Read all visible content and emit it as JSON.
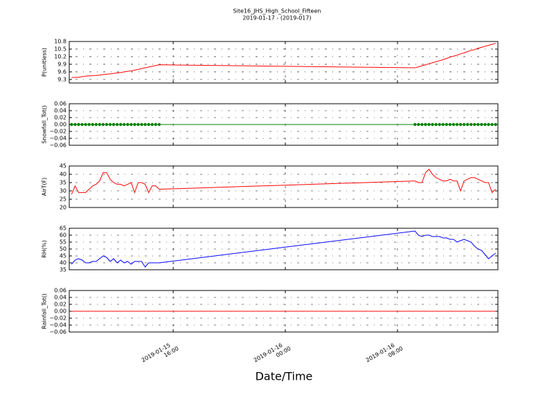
{
  "chart_data": {
    "type": "line",
    "title": "Site16_JHS_High_School_Fifteen",
    "subtitle": "2019-01-17 - (2019-017)",
    "xlabel": "Date/Time",
    "xlim": [
      "2019-01-15 08:35",
      "2019-01-16 15:10"
    ],
    "xticks": [
      "2019-01-15 16:00",
      "2019-01-16 00:00",
      "2019-01-16 08:00"
    ],
    "grid": true,
    "x": [
      "2019-01-15 08:45",
      "2019-01-15 09:00",
      "2019-01-15 09:15",
      "2019-01-15 09:30",
      "2019-01-15 09:45",
      "2019-01-15 10:00",
      "2019-01-15 10:15",
      "2019-01-15 10:30",
      "2019-01-15 10:45",
      "2019-01-15 11:00",
      "2019-01-15 11:15",
      "2019-01-15 11:30",
      "2019-01-15 11:45",
      "2019-01-15 12:00",
      "2019-01-15 12:15",
      "2019-01-15 12:30",
      "2019-01-15 12:45",
      "2019-01-15 13:00",
      "2019-01-15 13:15",
      "2019-01-15 13:30",
      "2019-01-15 13:45",
      "2019-01-15 14:00",
      "2019-01-15 14:15",
      "2019-01-15 14:30",
      "2019-01-15 14:45",
      "2019-01-15 15:00",
      "2019-01-16 09:15",
      "2019-01-16 09:30",
      "2019-01-16 09:45",
      "2019-01-16 10:00",
      "2019-01-16 10:15",
      "2019-01-16 10:30",
      "2019-01-16 10:45",
      "2019-01-16 11:00",
      "2019-01-16 11:15",
      "2019-01-16 11:30",
      "2019-01-16 11:45",
      "2019-01-16 12:00",
      "2019-01-16 12:15",
      "2019-01-16 12:30",
      "2019-01-16 12:45",
      "2019-01-16 13:00",
      "2019-01-16 13:15",
      "2019-01-16 13:30",
      "2019-01-16 13:45",
      "2019-01-16 14:00",
      "2019-01-16 14:15",
      "2019-01-16 14:30",
      "2019-01-16 14:45",
      "2019-01-16 15:00"
    ],
    "panels": [
      {
        "ylabel": "P(unitless)",
        "ylim": [
          9.16,
          10.8
        ],
        "yticks": [
          9.3,
          9.6,
          9.9,
          10.2,
          10.5,
          10.8
        ],
        "series": [
          {
            "color": "#ff0000",
            "markers": false,
            "values": [
              9.38,
              9.38,
              9.39,
              9.41,
              9.43,
              9.44,
              9.45,
              9.46,
              9.47,
              9.49,
              9.51,
              9.52,
              9.54,
              9.56,
              9.57,
              9.6,
              9.62,
              9.64,
              9.67,
              9.7,
              9.73,
              9.76,
              9.79,
              9.82,
              9.85,
              9.88,
              9.76,
              9.8,
              9.84,
              9.88,
              9.92,
              9.96,
              10.0,
              10.04,
              10.08,
              10.13,
              10.18,
              10.22,
              10.26,
              10.31,
              10.35,
              10.4,
              10.45,
              10.48,
              10.53,
              10.57,
              10.61,
              10.65,
              10.69,
              10.73
            ]
          }
        ]
      },
      {
        "ylabel": "Snowfall_Tot()",
        "ylim": [
          -0.06,
          0.06
        ],
        "yticks": [
          {
            "value": -0.06,
            "label": "−0.06"
          },
          {
            "value": -0.04,
            "label": "−0.04"
          },
          {
            "value": -0.02,
            "label": "−0.02"
          },
          {
            "value": 0,
            "label": "0.00"
          },
          0.02,
          0.04,
          0.06
        ],
        "series": [
          {
            "color": "#008000",
            "markers": true,
            "values": [
              0,
              0,
              0,
              0,
              0,
              0,
              0,
              0,
              0,
              0,
              0,
              0,
              0,
              0,
              0,
              0,
              0,
              0,
              0,
              0,
              0,
              0,
              0,
              0,
              0,
              0,
              0,
              0,
              0,
              0,
              0,
              0,
              0,
              0,
              0,
              0,
              0,
              0,
              0,
              0,
              0,
              0,
              0,
              0,
              0,
              0,
              0,
              0,
              0,
              0
            ]
          }
        ]
      },
      {
        "ylabel": "AirT(F)",
        "ylim": [
          20,
          45
        ],
        "yticks": [
          20,
          25,
          30,
          35,
          40,
          45
        ],
        "series": [
          {
            "color": "#ff0000",
            "markers": false,
            "values": [
              28,
              33,
              29,
              29,
              29,
              31,
              33,
              34,
              36,
              41,
              41,
              37,
              35,
              34,
              34,
              33,
              34,
              35,
              29,
              35,
              35,
              34,
              29,
              33,
              33,
              31,
              36,
              35,
              35,
              41,
              43,
              40,
              38,
              37,
              36,
              36,
              37,
              36,
              36,
              30,
              36,
              37,
              38,
              38,
              37,
              36,
              35,
              35,
              29,
              31
            ]
          }
        ]
      },
      {
        "ylabel": "RH(%)",
        "ylim": [
          35,
          65
        ],
        "yticks": [
          35,
          40,
          45,
          50,
          55,
          60,
          65
        ],
        "series": [
          {
            "color": "#0000ff",
            "markers": false,
            "values": [
              39,
              42,
              43,
              42,
              40,
              40,
              41,
              41,
              43,
              45,
              44,
              41,
              43,
              40,
              42,
              40,
              41,
              39,
              41,
              41,
              41,
              37,
              40,
              40,
              40,
              40,
              63,
              60,
              59,
              60,
              60,
              59,
              59,
              59,
              58,
              58,
              57,
              57,
              55,
              56,
              57,
              56,
              55,
              52,
              50,
              49,
              46,
              43,
              45,
              47
            ]
          }
        ]
      },
      {
        "ylabel": "Rainfall_Tot()",
        "ylim": [
          -0.06,
          0.06
        ],
        "yticks": [
          {
            "value": -0.06,
            "label": "−0.06"
          },
          {
            "value": -0.04,
            "label": "−0.04"
          },
          {
            "value": -0.02,
            "label": "−0.02"
          },
          {
            "value": 0,
            "label": "0.00"
          },
          0.02,
          0.04,
          0.06
        ],
        "series": [
          {
            "color": "#ff0000",
            "markers": false,
            "values": [
              0,
              0,
              0,
              0,
              0,
              0,
              0,
              0,
              0,
              0,
              0,
              0,
              0,
              0,
              0,
              0,
              0,
              0,
              0,
              0,
              0,
              0,
              0,
              0,
              0,
              0,
              0,
              0,
              0,
              0,
              0,
              0,
              0,
              0,
              0,
              0,
              0,
              0,
              0,
              0,
              0,
              0,
              0,
              0,
              0,
              0,
              0,
              0,
              0,
              0
            ]
          }
        ]
      }
    ]
  }
}
